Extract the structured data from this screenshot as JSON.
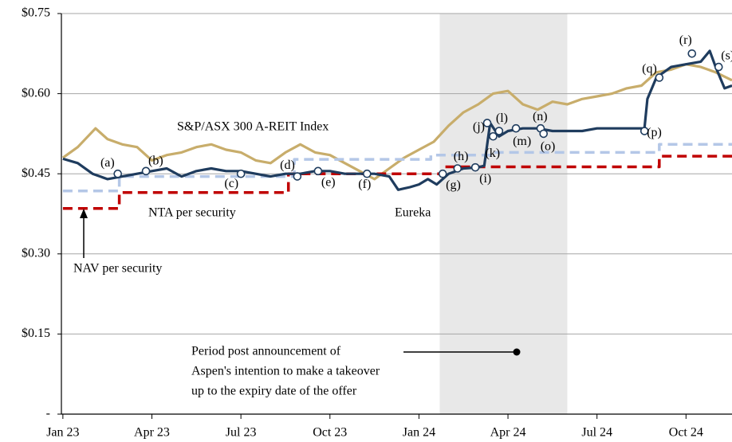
{
  "chart_data": {
    "type": "line",
    "xlim": [
      -0.05,
      22.55
    ],
    "xticks": [
      {
        "value": 0,
        "label": "Jan 23"
      },
      {
        "value": 3,
        "label": "Apr 23"
      },
      {
        "value": 6,
        "label": "Jul 23"
      },
      {
        "value": 9,
        "label": "Oct 23"
      },
      {
        "value": 12,
        "label": "Jan 24"
      },
      {
        "value": 15,
        "label": "Apr 24"
      },
      {
        "value": 18,
        "label": "Jul 24"
      },
      {
        "value": 21,
        "label": "Oct 24"
      }
    ],
    "ylim": [
      0,
      0.75
    ],
    "yticks": [
      {
        "value": 0,
        "label": "-"
      },
      {
        "value": 0.15,
        "label": "$0.15"
      },
      {
        "value": 0.3,
        "label": "$0.30"
      },
      {
        "value": 0.45,
        "label": "$0.45"
      },
      {
        "value": 0.6,
        "label": "$0.60"
      },
      {
        "value": 0.75,
        "label": "$0.75"
      }
    ],
    "grid": true,
    "shaded_region": [
      12.7,
      17.0
    ],
    "shaded_label": [
      "Period post announcement of",
      "Aspen's intention to make a takeover",
      "up to the expiry date of the offer"
    ],
    "series": [
      {
        "name": "S&P/ASX 300 A-REIT Index",
        "color": "#c8ad6b",
        "dashed": false,
        "x": [
          0,
          0.5,
          1.1,
          1.5,
          2,
          2.5,
          3,
          3.5,
          4,
          4.5,
          5,
          5.5,
          6,
          6.5,
          7,
          7.5,
          8,
          8.5,
          9,
          9.5,
          10,
          10.5,
          11,
          11.5,
          12,
          12.5,
          13,
          13.5,
          14,
          14.5,
          15,
          15.5,
          16,
          16.5,
          17,
          17.5,
          18,
          18.5,
          19,
          19.5,
          20,
          20.5,
          21,
          21.5,
          22,
          22.55
        ],
        "values": [
          0.48,
          0.5,
          0.535,
          0.515,
          0.505,
          0.5,
          0.475,
          0.485,
          0.49,
          0.5,
          0.505,
          0.495,
          0.49,
          0.475,
          0.47,
          0.49,
          0.505,
          0.49,
          0.485,
          0.47,
          0.455,
          0.44,
          0.46,
          0.48,
          0.495,
          0.51,
          0.54,
          0.565,
          0.58,
          0.6,
          0.605,
          0.58,
          0.57,
          0.585,
          0.58,
          0.59,
          0.595,
          0.6,
          0.61,
          0.615,
          0.64,
          0.645,
          0.655,
          0.65,
          0.64,
          0.625
        ]
      },
      {
        "name": "NAV per security",
        "color": "#b4c7e7",
        "dashed": true,
        "x": [
          0,
          1.9,
          1.9,
          7.8,
          7.8,
          12.4,
          12.4,
          14.5,
          14.5,
          20.1,
          20.1,
          22.55
        ],
        "values": [
          0.418,
          0.418,
          0.445,
          0.445,
          0.477,
          0.477,
          0.485,
          0.485,
          0.49,
          0.49,
          0.505,
          0.505
        ]
      },
      {
        "name": "NTA per security",
        "color": "#c00000",
        "dashed": true,
        "x": [
          0,
          1.9,
          1.9,
          7.6,
          7.6,
          12.8,
          12.8,
          20.1,
          20.1,
          22.55
        ],
        "values": [
          0.385,
          0.385,
          0.415,
          0.415,
          0.45,
          0.45,
          0.463,
          0.463,
          0.483,
          0.483
        ]
      },
      {
        "name": "Eureka",
        "color": "#1f3c5e",
        "dashed": false,
        "x": [
          0,
          0.5,
          1,
          1.5,
          2,
          2.5,
          3,
          3.5,
          4,
          4.5,
          5,
          5.5,
          6,
          6.5,
          7,
          7.5,
          8,
          8.5,
          9,
          9.5,
          10,
          10.5,
          11,
          11.3,
          11.7,
          12,
          12.3,
          12.6,
          13,
          13.5,
          14,
          14.2,
          14.4,
          14.7,
          15,
          15.5,
          16,
          16.5,
          17,
          17.5,
          18,
          18.5,
          19,
          19.6,
          19.7,
          20,
          20.5,
          21,
          21.5,
          21.8,
          22,
          22.3,
          22.55
        ],
        "values": [
          0.478,
          0.47,
          0.45,
          0.44,
          0.445,
          0.45,
          0.455,
          0.46,
          0.445,
          0.455,
          0.46,
          0.455,
          0.455,
          0.45,
          0.445,
          0.45,
          0.45,
          0.455,
          0.455,
          0.45,
          0.45,
          0.45,
          0.445,
          0.42,
          0.425,
          0.43,
          0.44,
          0.43,
          0.45,
          0.46,
          0.462,
          0.465,
          0.545,
          0.52,
          0.53,
          0.535,
          0.535,
          0.53,
          0.53,
          0.53,
          0.535,
          0.535,
          0.535,
          0.535,
          0.59,
          0.63,
          0.65,
          0.655,
          0.66,
          0.68,
          0.65,
          0.61,
          0.615
        ]
      }
    ],
    "events": [
      {
        "label": "(a)",
        "x": 1.85,
        "y": 0.45
      },
      {
        "label": "(b)",
        "x": 2.8,
        "y": 0.455
      },
      {
        "label": "(c)",
        "x": 6.0,
        "y": 0.45
      },
      {
        "label": "(d)",
        "x": 7.9,
        "y": 0.445
      },
      {
        "label": "(e)",
        "x": 8.6,
        "y": 0.455
      },
      {
        "label": "(f)",
        "x": 10.25,
        "y": 0.45
      },
      {
        "label": "(g)",
        "x": 12.8,
        "y": 0.45
      },
      {
        "label": "(h)",
        "x": 13.3,
        "y": 0.46
      },
      {
        "label": "(i)",
        "x": 13.9,
        "y": 0.462
      },
      {
        "label": "(j)",
        "x": 14.3,
        "y": 0.545
      },
      {
        "label": "(k)",
        "x": 14.5,
        "y": 0.52
      },
      {
        "label": "(l)",
        "x": 14.7,
        "y": 0.53
      },
      {
        "label": "(m)",
        "x": 15.27,
        "y": 0.535
      },
      {
        "label": "(n)",
        "x": 16.1,
        "y": 0.535
      },
      {
        "label": "(o)",
        "x": 16.2,
        "y": 0.525
      },
      {
        "label": "(p)",
        "x": 19.6,
        "y": 0.53
      },
      {
        "label": "(q)",
        "x": 20.1,
        "y": 0.63
      },
      {
        "label": "(r)",
        "x": 21.2,
        "y": 0.675
      },
      {
        "label": "(s)",
        "x": 22.1,
        "y": 0.65
      }
    ]
  }
}
